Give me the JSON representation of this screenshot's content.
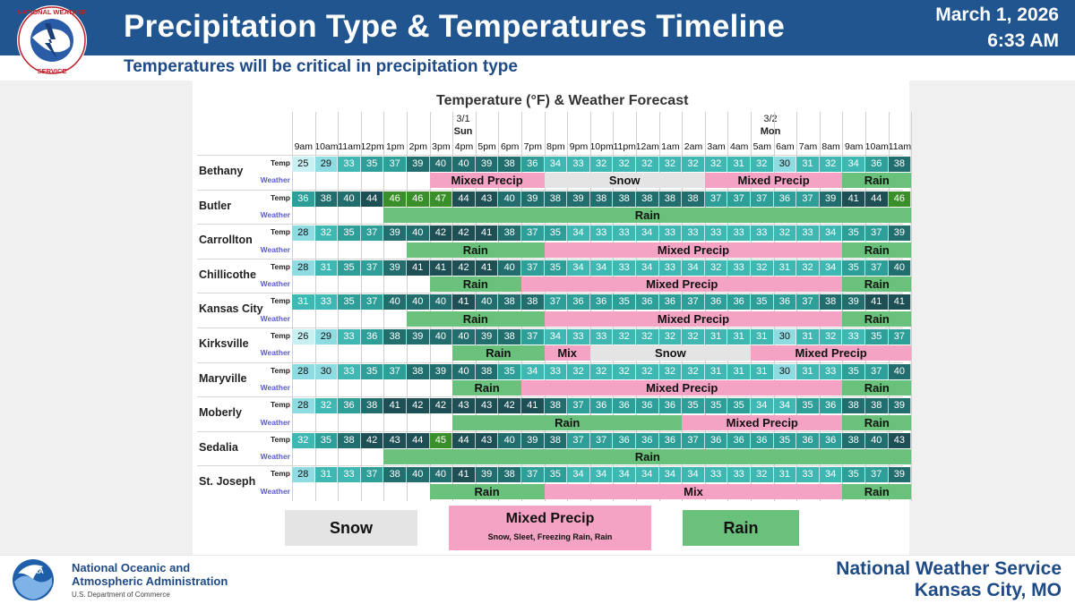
{
  "header": {
    "title": "Precipitation Type & Temperatures Timeline",
    "subtitle": "Temperatures will be critical in precipitation type",
    "date": "March 1, 2026",
    "time": "6:33 AM",
    "logo_text": "NATIONAL WEATHER SERVICE"
  },
  "chart": {
    "title": "Temperature (°F) & Weather Forecast",
    "day1": {
      "date": "3/1",
      "name": "Sun"
    },
    "day2": {
      "date": "3/2",
      "name": "Mon"
    },
    "hours": [
      "9am",
      "10am",
      "11am",
      "12pm",
      "1pm",
      "2pm",
      "3pm",
      "4pm",
      "5pm",
      "6pm",
      "7pm",
      "8pm",
      "9pm",
      "10pm",
      "11pm",
      "12am",
      "1am",
      "2am",
      "3am",
      "4am",
      "5am",
      "6am",
      "7am",
      "8am",
      "9am",
      "10am",
      "11am"
    ],
    "row_label_temp": "Temp",
    "row_label_weather": "Weather",
    "colors": {
      "snow": "#e4e4e4",
      "mixed": "#f5a3c4",
      "rain": "#69c17b",
      "t25": "#c9f0f3",
      "t30": "#8fdbe2",
      "t33": "#3fb7b3",
      "t35": "#2e9e98",
      "t38": "#226e6e",
      "t41": "#1e4f55",
      "t45": "#3b8f2a"
    },
    "cities": [
      {
        "name": "Bethany",
        "temps": [
          25,
          29,
          33,
          35,
          37,
          39,
          40,
          40,
          39,
          38,
          36,
          34,
          33,
          32,
          32,
          32,
          32,
          32,
          32,
          31,
          32,
          30,
          31,
          32,
          34,
          36,
          38
        ],
        "weather": [
          {
            "type": "mixed",
            "label": "Mixed Precip",
            "start": 6,
            "span": 5
          },
          {
            "type": "snow",
            "label": "Snow",
            "start": 11,
            "span": 7
          },
          {
            "type": "mixed",
            "label": "Mixed Precip",
            "start": 18,
            "span": 6
          },
          {
            "type": "rain",
            "label": "Rain",
            "start": 24,
            "span": 3
          }
        ]
      },
      {
        "name": "Butler",
        "temps": [
          36,
          38,
          40,
          44,
          46,
          46,
          47,
          44,
          43,
          40,
          39,
          38,
          39,
          38,
          38,
          38,
          38,
          38,
          37,
          37,
          37,
          36,
          37,
          39,
          41,
          44,
          46
        ],
        "weather": [
          {
            "type": "rain",
            "label": "Rain",
            "start": 4,
            "span": 23
          }
        ]
      },
      {
        "name": "Carrollton",
        "temps": [
          28,
          32,
          35,
          37,
          39,
          40,
          42,
          42,
          41,
          38,
          37,
          35,
          34,
          33,
          33,
          34,
          33,
          33,
          33,
          33,
          33,
          32,
          33,
          34,
          35,
          37,
          39
        ],
        "weather": [
          {
            "type": "rain",
            "label": "Rain",
            "start": 5,
            "span": 6
          },
          {
            "type": "mixed",
            "label": "Mixed Precip",
            "start": 11,
            "span": 13
          },
          {
            "type": "rain",
            "label": "Rain",
            "start": 24,
            "span": 3
          }
        ]
      },
      {
        "name": "Chillicothe",
        "temps": [
          28,
          31,
          35,
          37,
          39,
          41,
          41,
          42,
          41,
          40,
          37,
          35,
          34,
          34,
          33,
          34,
          33,
          34,
          32,
          33,
          32,
          31,
          32,
          34,
          35,
          37,
          40
        ],
        "weather": [
          {
            "type": "rain",
            "label": "Rain",
            "start": 6,
            "span": 4
          },
          {
            "type": "mixed",
            "label": "Mixed Precip",
            "start": 10,
            "span": 14
          },
          {
            "type": "rain",
            "label": "Rain",
            "start": 24,
            "span": 3
          }
        ]
      },
      {
        "name": "Kansas City",
        "temps": [
          31,
          33,
          35,
          37,
          40,
          40,
          40,
          41,
          40,
          38,
          38,
          37,
          36,
          36,
          35,
          36,
          36,
          37,
          36,
          36,
          35,
          36,
          37,
          38,
          39,
          41,
          41
        ],
        "weather": [
          {
            "type": "rain",
            "label": "Rain",
            "start": 5,
            "span": 6
          },
          {
            "type": "mixed",
            "label": "Mixed Precip",
            "start": 11,
            "span": 13
          },
          {
            "type": "rain",
            "label": "Rain",
            "start": 24,
            "span": 3
          }
        ]
      },
      {
        "name": "Kirksville",
        "temps": [
          26,
          29,
          33,
          36,
          38,
          39,
          40,
          40,
          39,
          38,
          37,
          34,
          33,
          33,
          32,
          32,
          32,
          32,
          31,
          31,
          31,
          30,
          31,
          32,
          33,
          35,
          37
        ],
        "weather": [
          {
            "type": "rain",
            "label": "Rain",
            "start": 7,
            "span": 4
          },
          {
            "type": "mixed",
            "label": "Mix",
            "start": 11,
            "span": 2
          },
          {
            "type": "snow",
            "label": "Snow",
            "start": 13,
            "span": 7
          },
          {
            "type": "mixed",
            "label": "Mixed Precip",
            "start": 20,
            "span": 7
          }
        ]
      },
      {
        "name": "Maryville",
        "temps": [
          28,
          30,
          33,
          35,
          37,
          38,
          39,
          40,
          38,
          35,
          34,
          33,
          32,
          32,
          32,
          32,
          32,
          32,
          31,
          31,
          31,
          30,
          31,
          33,
          35,
          37,
          40
        ],
        "weather": [
          {
            "type": "rain",
            "label": "Rain",
            "start": 7,
            "span": 3
          },
          {
            "type": "mixed",
            "label": "Mixed Precip",
            "start": 10,
            "span": 14
          },
          {
            "type": "rain",
            "label": "Rain",
            "start": 24,
            "span": 3
          }
        ]
      },
      {
        "name": "Moberly",
        "temps": [
          28,
          32,
          36,
          38,
          41,
          42,
          42,
          43,
          43,
          42,
          41,
          38,
          37,
          36,
          36,
          36,
          36,
          35,
          35,
          35,
          34,
          34,
          35,
          36,
          38,
          38,
          39
        ],
        "weather": [
          {
            "type": "rain",
            "label": "Rain",
            "start": 7,
            "span": 10
          },
          {
            "type": "mixed",
            "label": "Mixed Precip",
            "start": 17,
            "span": 7
          },
          {
            "type": "rain",
            "label": "Rain",
            "start": 24,
            "span": 3
          }
        ]
      },
      {
        "name": "Sedalia",
        "temps": [
          32,
          35,
          38,
          42,
          43,
          44,
          45,
          44,
          43,
          40,
          39,
          38,
          37,
          37,
          36,
          36,
          36,
          37,
          36,
          36,
          36,
          35,
          36,
          36,
          38,
          40,
          43
        ],
        "weather": [
          {
            "type": "rain",
            "label": "Rain",
            "start": 4,
            "span": 23
          }
        ]
      },
      {
        "name": "St. Joseph",
        "temps": [
          28,
          31,
          33,
          37,
          38,
          40,
          40,
          41,
          39,
          38,
          37,
          35,
          34,
          34,
          34,
          34,
          34,
          34,
          33,
          33,
          32,
          31,
          33,
          34,
          35,
          37,
          39
        ],
        "weather": [
          {
            "type": "rain",
            "label": "Rain",
            "start": 6,
            "span": 5
          },
          {
            "type": "mixed",
            "label": "Mix",
            "start": 11,
            "span": 13
          },
          {
            "type": "rain",
            "label": "Rain",
            "start": 24,
            "span": 3
          }
        ]
      }
    ]
  },
  "legend": {
    "snow": "Snow",
    "mixed": "Mixed Precip",
    "mixed_sub": "Snow, Sleet, Freezing Rain, Rain",
    "rain": "Rain"
  },
  "footer": {
    "agency_line1": "National Oceanic and",
    "agency_line2": "Atmospheric Administration",
    "department": "U.S. Department of Commerce",
    "noaa_logo_text": "NOAA",
    "office_line1": "National Weather Service",
    "office_line2": "Kansas City, MO"
  }
}
